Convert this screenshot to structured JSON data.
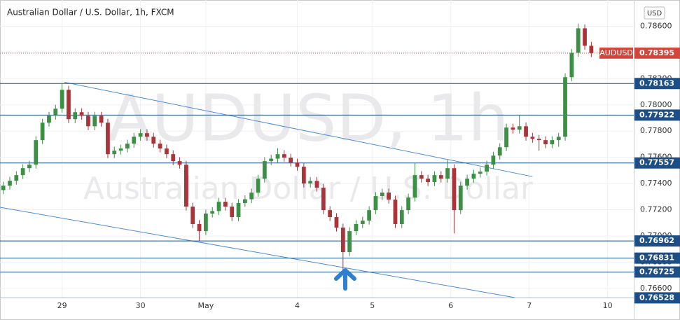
{
  "chart_data": {
    "type": "candlestick",
    "title": "Australian Dollar / U.S. Dollar, 1h, FXCM",
    "watermark_symbol": "AUDUSD, 1h",
    "watermark_name": "Australian Dollar / U.S. Dollar",
    "currency": "USD",
    "symbol": "AUDUSD",
    "up_color": "#3d8f45",
    "down_color": "#a9343a",
    "grid": true,
    "xlim": [
      -1,
      193
    ],
    "ylim": [
      0.7653,
      0.788
    ],
    "xticks": [
      {
        "value": 18,
        "label": "29"
      },
      {
        "value": 42,
        "label": "30"
      },
      {
        "value": 62,
        "label": "May"
      },
      {
        "value": 90,
        "label": "4"
      },
      {
        "value": 113,
        "label": "5"
      },
      {
        "value": 137,
        "label": "6"
      },
      {
        "value": 161,
        "label": "7"
      },
      {
        "value": 185,
        "label": "10"
      }
    ],
    "yticks": [
      {
        "value": 0.786,
        "label": "0.78600"
      },
      {
        "value": 0.784,
        "label": "0.78400"
      },
      {
        "value": 0.782,
        "label": "0.78200"
      },
      {
        "value": 0.78,
        "label": "0.78000"
      },
      {
        "value": 0.778,
        "label": "0.77800"
      },
      {
        "value": 0.776,
        "label": "0.77600"
      },
      {
        "value": 0.774,
        "label": "0.77400"
      },
      {
        "value": 0.772,
        "label": "0.77200"
      },
      {
        "value": 0.77,
        "label": "0.77000"
      },
      {
        "value": 0.768,
        "label": "0.76800"
      },
      {
        "value": 0.766,
        "label": "0.76600"
      }
    ],
    "x": [
      0,
      2,
      4,
      6,
      8,
      10,
      12,
      14,
      16,
      18,
      20,
      22,
      24,
      26,
      28,
      30,
      32,
      34,
      36,
      38,
      40,
      42,
      44,
      46,
      48,
      50,
      52,
      54,
      56,
      58,
      60,
      62,
      64,
      66,
      68,
      70,
      72,
      74,
      76,
      78,
      80,
      82,
      84,
      86,
      88,
      90,
      92,
      94,
      96,
      98,
      100,
      102,
      104,
      106,
      108,
      110,
      112,
      114,
      116,
      118,
      120,
      122,
      124,
      126,
      128,
      130,
      132,
      134,
      136,
      138,
      140,
      142,
      144,
      146,
      148,
      150,
      152,
      154,
      156,
      158,
      160,
      162,
      164,
      166,
      168,
      170,
      172,
      174,
      176,
      178,
      180
    ],
    "open": [
      0.7735,
      0.77384,
      0.77421,
      0.77464,
      0.77517,
      0.77544,
      0.77731,
      0.77864,
      0.77917,
      0.77971,
      0.78115,
      0.77891,
      0.77944,
      0.77917,
      0.77837,
      0.77917,
      0.77864,
      0.77624,
      0.77651,
      0.77667,
      0.77704,
      0.77757,
      0.77784,
      0.77757,
      0.77704,
      0.77667,
      0.77624,
      0.77571,
      0.77544,
      0.77224,
      0.77091,
      0.77037,
      0.77171,
      0.7719,
      0.77261,
      0.77224,
      0.77144,
      0.77251,
      0.7728,
      0.77331,
      0.77437,
      0.77571,
      0.7759,
      0.77624,
      0.77597,
      0.7756,
      0.77528,
      0.774,
      0.7742,
      0.77368,
      0.77197,
      0.77144,
      0.77064,
      0.76877,
      0.77037,
      0.77091,
      0.77117,
      0.77197,
      0.77304,
      0.77331,
      0.77277,
      0.77091,
      0.77197,
      0.77293,
      0.77464,
      0.77437,
      0.77411,
      0.77464,
      0.77437,
      0.77517,
      0.77197,
      0.77384,
      0.77437,
      0.77475,
      0.77491,
      0.77544,
      0.77613,
      0.77677,
      0.77827,
      0.77811,
      0.77837,
      0.77757,
      0.77741,
      0.77731,
      0.777,
      0.77731,
      0.77757,
      0.78211,
      0.78397,
      0.78584,
      0.78451
    ],
    "high": [
      0.77414,
      0.77451,
      0.77494,
      0.77547,
      0.77574,
      0.77761,
      0.77894,
      0.77947,
      0.78001,
      0.78163,
      0.78145,
      0.77974,
      0.77974,
      0.77947,
      0.77947,
      0.77947,
      0.77894,
      0.77681,
      0.77697,
      0.77734,
      0.77787,
      0.77814,
      0.77814,
      0.77787,
      0.77734,
      0.77697,
      0.77654,
      0.77601,
      0.77574,
      0.77254,
      0.77121,
      0.77201,
      0.7722,
      0.77291,
      0.77291,
      0.77254,
      0.77281,
      0.7731,
      0.77361,
      0.77467,
      0.77601,
      0.7762,
      0.7767,
      0.77654,
      0.77627,
      0.7759,
      0.77558,
      0.7745,
      0.7745,
      0.77398,
      0.77227,
      0.77174,
      0.77094,
      0.77067,
      0.77121,
      0.77147,
      0.77227,
      0.77334,
      0.77361,
      0.77361,
      0.77307,
      0.77227,
      0.77323,
      0.77557,
      0.77494,
      0.77467,
      0.77494,
      0.77494,
      0.7758,
      0.77547,
      0.77414,
      0.77467,
      0.77505,
      0.77521,
      0.77574,
      0.77643,
      0.77707,
      0.77857,
      0.77857,
      0.77922,
      0.77867,
      0.77787,
      0.77771,
      0.77761,
      0.77761,
      0.77787,
      0.78241,
      0.78427,
      0.7862,
      0.78614,
      0.78481
    ],
    "low": [
      0.7732,
      0.77354,
      0.77391,
      0.77434,
      0.77487,
      0.77514,
      0.77701,
      0.77834,
      0.77887,
      0.77941,
      0.77861,
      0.77861,
      0.77887,
      0.77807,
      0.77807,
      0.77834,
      0.77594,
      0.77594,
      0.77621,
      0.77637,
      0.77674,
      0.77727,
      0.77727,
      0.77674,
      0.77637,
      0.77594,
      0.77541,
      0.77514,
      0.77194,
      0.77061,
      0.76962,
      0.77007,
      0.77141,
      0.7716,
      0.77194,
      0.77114,
      0.77114,
      0.77221,
      0.7725,
      0.77301,
      0.77407,
      0.77541,
      0.7756,
      0.77567,
      0.7753,
      0.77498,
      0.7737,
      0.7737,
      0.77338,
      0.77167,
      0.77114,
      0.77034,
      0.76725,
      0.76847,
      0.77007,
      0.77061,
      0.77087,
      0.77167,
      0.77274,
      0.77247,
      0.77061,
      0.77061,
      0.77167,
      0.77263,
      0.77407,
      0.77381,
      0.77381,
      0.77407,
      0.77407,
      0.7702,
      0.77167,
      0.77354,
      0.77407,
      0.77445,
      0.77461,
      0.77514,
      0.77583,
      0.77647,
      0.77781,
      0.77781,
      0.77727,
      0.77711,
      0.7765,
      0.7767,
      0.7767,
      0.7768,
      0.77727,
      0.78181,
      0.78367,
      0.78421,
      0.78365
    ],
    "close": [
      0.77384,
      0.77421,
      0.77464,
      0.77517,
      0.77544,
      0.77731,
      0.77864,
      0.77917,
      0.77971,
      0.78115,
      0.77891,
      0.77944,
      0.77917,
      0.77837,
      0.77917,
      0.77864,
      0.77624,
      0.77651,
      0.77667,
      0.77704,
      0.77757,
      0.77784,
      0.77757,
      0.77704,
      0.77667,
      0.77624,
      0.77571,
      0.77544,
      0.77224,
      0.77091,
      0.77037,
      0.77171,
      0.7719,
      0.77261,
      0.77224,
      0.77144,
      0.77251,
      0.7728,
      0.77331,
      0.77437,
      0.77571,
      0.7759,
      0.77624,
      0.77597,
      0.7756,
      0.77528,
      0.774,
      0.7742,
      0.77368,
      0.77197,
      0.77144,
      0.77064,
      0.76877,
      0.77037,
      0.77091,
      0.77117,
      0.77197,
      0.77304,
      0.77331,
      0.77277,
      0.77091,
      0.77197,
      0.77293,
      0.77464,
      0.77437,
      0.77411,
      0.77464,
      0.77437,
      0.77517,
      0.77197,
      0.77384,
      0.77437,
      0.77475,
      0.77491,
      0.77544,
      0.77613,
      0.77677,
      0.77827,
      0.77811,
      0.77837,
      0.77757,
      0.77741,
      0.77731,
      0.777,
      0.77731,
      0.77757,
      0.78211,
      0.78397,
      0.78584,
      0.78451,
      0.78395
    ],
    "levels": [
      {
        "value": 0.78163,
        "label": "0.78163"
      },
      {
        "value": 0.77922,
        "label": "0.77922"
      },
      {
        "value": 0.77557,
        "label": "0.77557"
      },
      {
        "value": 0.76962,
        "label": "0.76962"
      },
      {
        "value": 0.76831,
        "label": "0.76831"
      },
      {
        "value": 0.76725,
        "label": "0.76725"
      },
      {
        "value": 0.76528,
        "label": "0.76528"
      }
    ],
    "level_color": "#1d4f86",
    "price_line": {
      "value": 0.78395,
      "label": "0.78395",
      "color": "#d2473b"
    },
    "trendlines": [
      {
        "x": [
          18.7,
          162
        ],
        "y": [
          0.78173,
          0.77453
        ]
      },
      {
        "x": [
          -1,
          156.6
        ],
        "y": [
          0.77219,
          0.7653
        ]
      }
    ],
    "trendline_color": "#4b8bd6"
  }
}
